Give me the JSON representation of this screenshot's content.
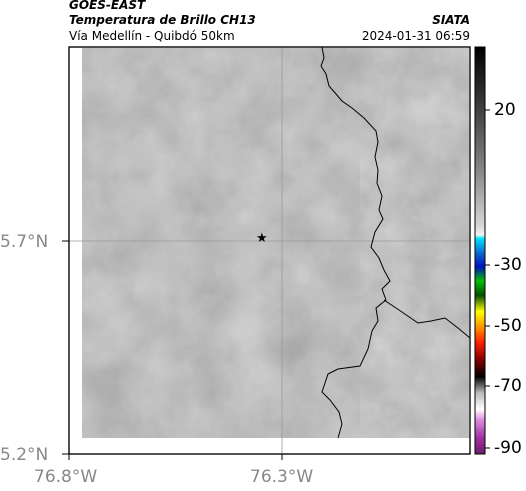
{
  "header": {
    "satellite": "GOES-EAST",
    "product": "Temperatura de Brillo CH13",
    "region": "Vía Medellín - Quibdó 50km",
    "source": "SIATA",
    "timestamp": "2024-01-31 06:59"
  },
  "map": {
    "type": "satellite-map",
    "base_color": "#8a8a8a",
    "lat_ticks": [
      {
        "value": 5.7,
        "label": "5.7°N"
      },
      {
        "value": 5.2,
        "label": "5.2°N"
      }
    ],
    "lon_ticks": [
      {
        "value": -76.8,
        "label": "76.8°W"
      },
      {
        "value": -76.3,
        "label": "76.3°W"
      }
    ],
    "marker_icon": "star-icon"
  },
  "colorbar": {
    "ticks": [
      {
        "value": 20,
        "label": "20"
      },
      {
        "value": -30,
        "label": "-30"
      },
      {
        "value": -50,
        "label": "-50"
      },
      {
        "value": -70,
        "label": "-70"
      },
      {
        "value": -90,
        "label": "-90"
      }
    ]
  }
}
